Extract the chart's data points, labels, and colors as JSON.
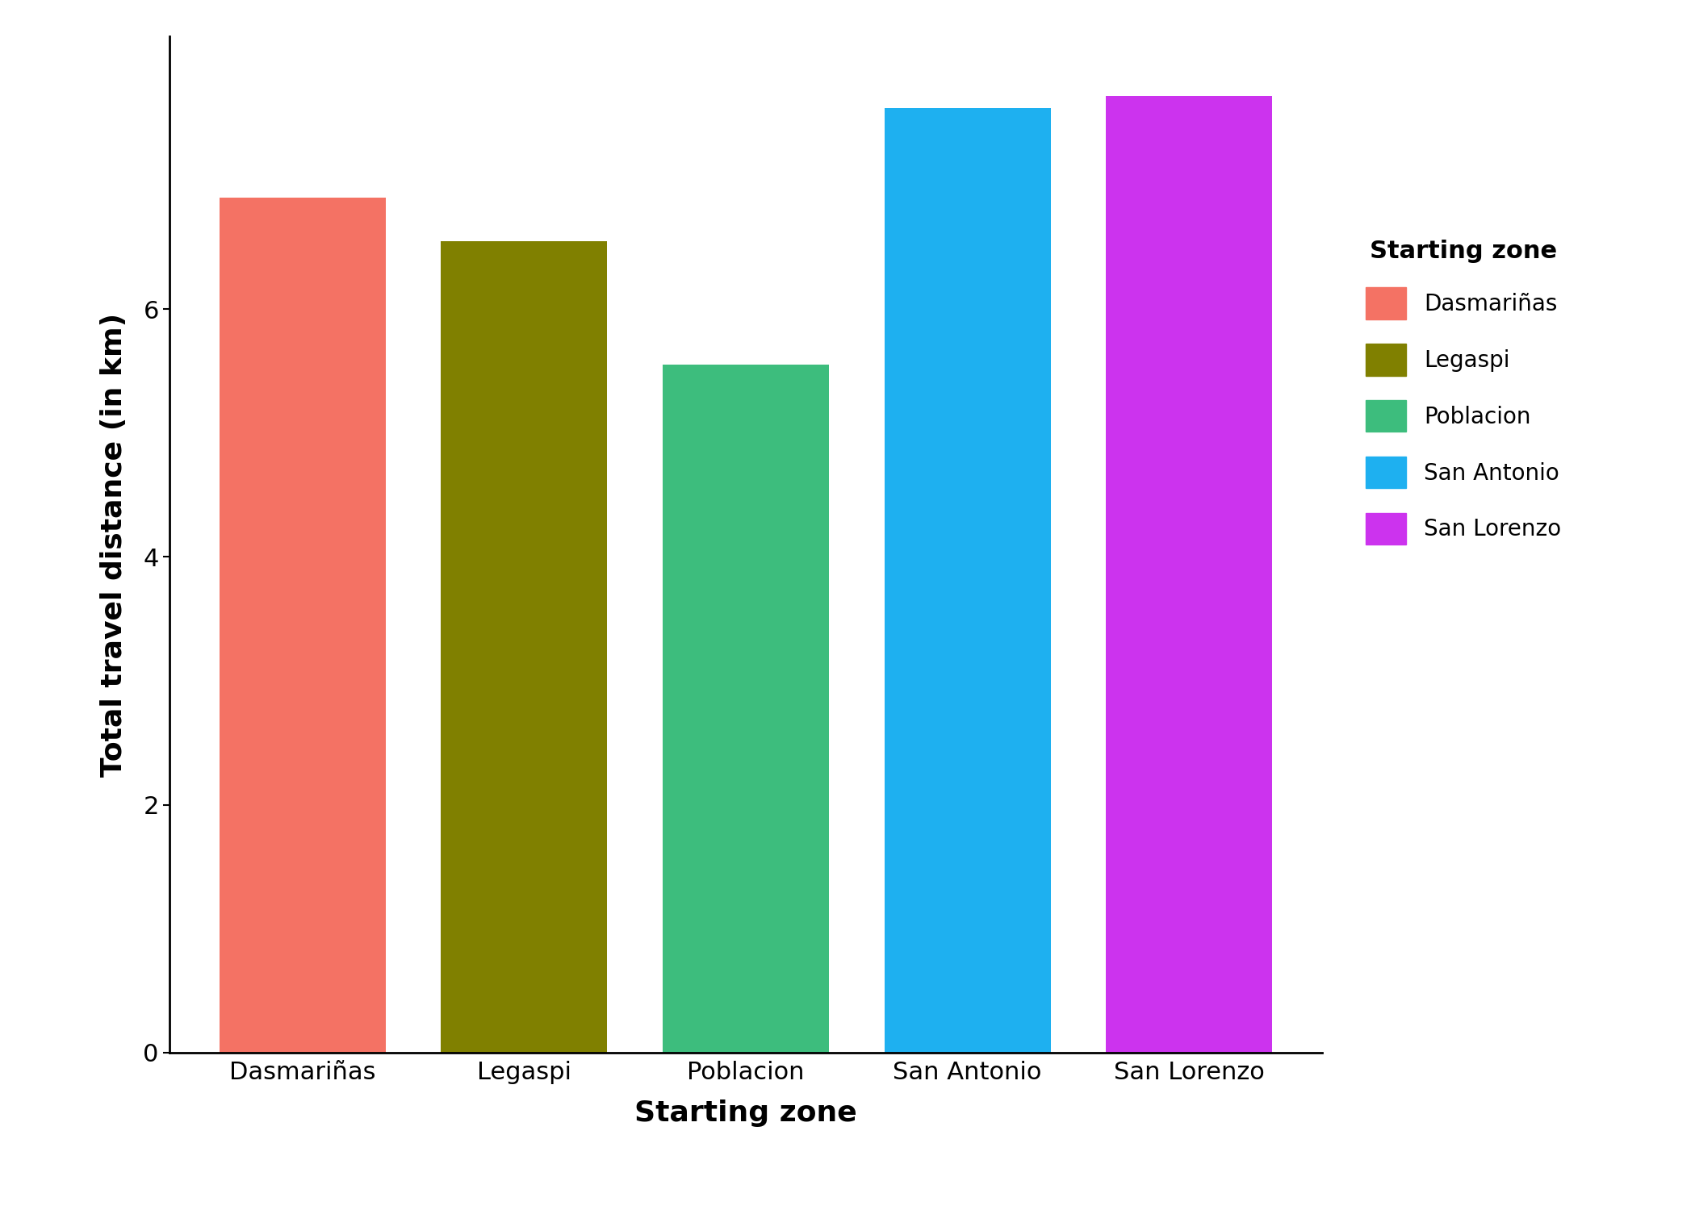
{
  "categories": [
    "Dasmariñas",
    "Legaspi",
    "Poblacion",
    "San Antonio",
    "San Lorenzo"
  ],
  "values": [
    6.9,
    6.55,
    5.55,
    7.62,
    7.72
  ],
  "bar_colors": [
    "#F47264",
    "#808000",
    "#3DBD7D",
    "#1EB0F0",
    "#CC33EE"
  ],
  "legend_colors": [
    "#F47264",
    "#808000",
    "#3DBD7D",
    "#1EB0F0",
    "#CC33EE"
  ],
  "legend_labels": [
    "Dasmariñas",
    "Legaspi",
    "Poblacion",
    "San Antonio",
    "San Lorenzo"
  ],
  "legend_title": "Starting zone",
  "xlabel": "Starting zone",
  "ylabel": "Total travel distance (in km)",
  "ylim": [
    0,
    8.2
  ],
  "yticks": [
    0,
    2,
    4,
    6
  ],
  "background_color": "#ffffff",
  "xlabel_fontsize": 26,
  "ylabel_fontsize": 26,
  "tick_fontsize": 22,
  "legend_fontsize": 20,
  "legend_title_fontsize": 22,
  "bar_width": 0.75
}
